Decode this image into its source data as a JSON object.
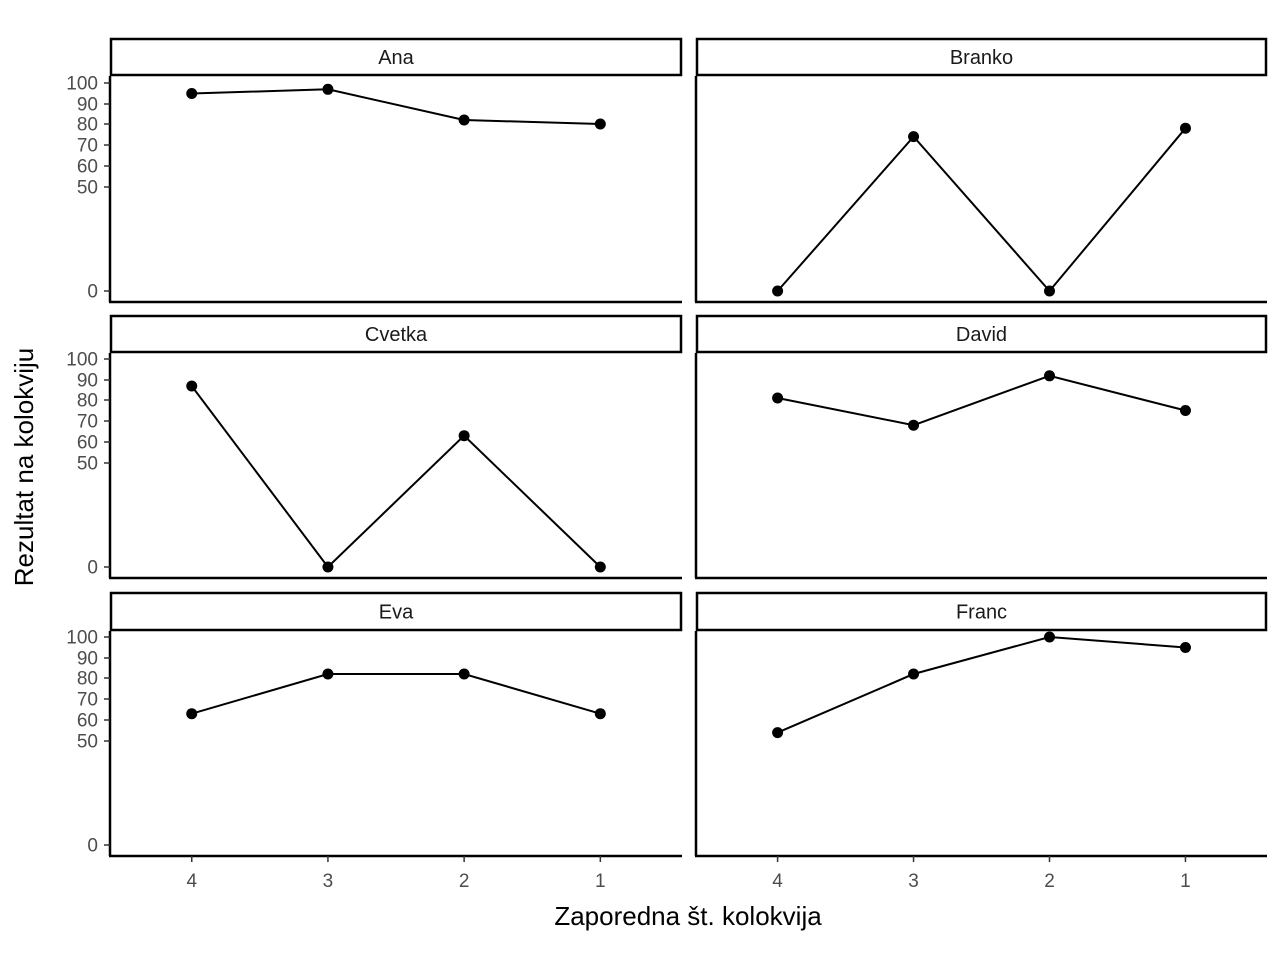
{
  "chart_data": {
    "type": "line",
    "title": "",
    "xlabel": "Zaporedna št. kolokvija",
    "ylabel": "Rezultat na kolokviju",
    "x_categories": [
      "4",
      "3",
      "2",
      "1"
    ],
    "y_ticks": [
      0,
      50,
      60,
      70,
      80,
      90,
      100
    ],
    "ylim": [
      -5,
      105
    ],
    "y_scale": "exponential-like (ticks 50–100 spaced wider than 0–50)",
    "grid": false,
    "legend": "none",
    "facets": [
      {
        "name": "Ana",
        "values": [
          95,
          97,
          82,
          80
        ]
      },
      {
        "name": "Branko",
        "values": [
          0,
          74,
          0,
          78
        ]
      },
      {
        "name": "Cvetka",
        "values": [
          87,
          0,
          63,
          0
        ]
      },
      {
        "name": "David",
        "values": [
          81,
          68,
          92,
          75
        ]
      },
      {
        "name": "Eva",
        "values": [
          63,
          82,
          82,
          63
        ]
      },
      {
        "name": "Franc",
        "values": [
          54,
          82,
          100,
          95
        ]
      }
    ],
    "colors": {
      "line": "#000000",
      "point": "#000000",
      "axis": "#000000",
      "tick_text": "#4d4d4d"
    }
  }
}
